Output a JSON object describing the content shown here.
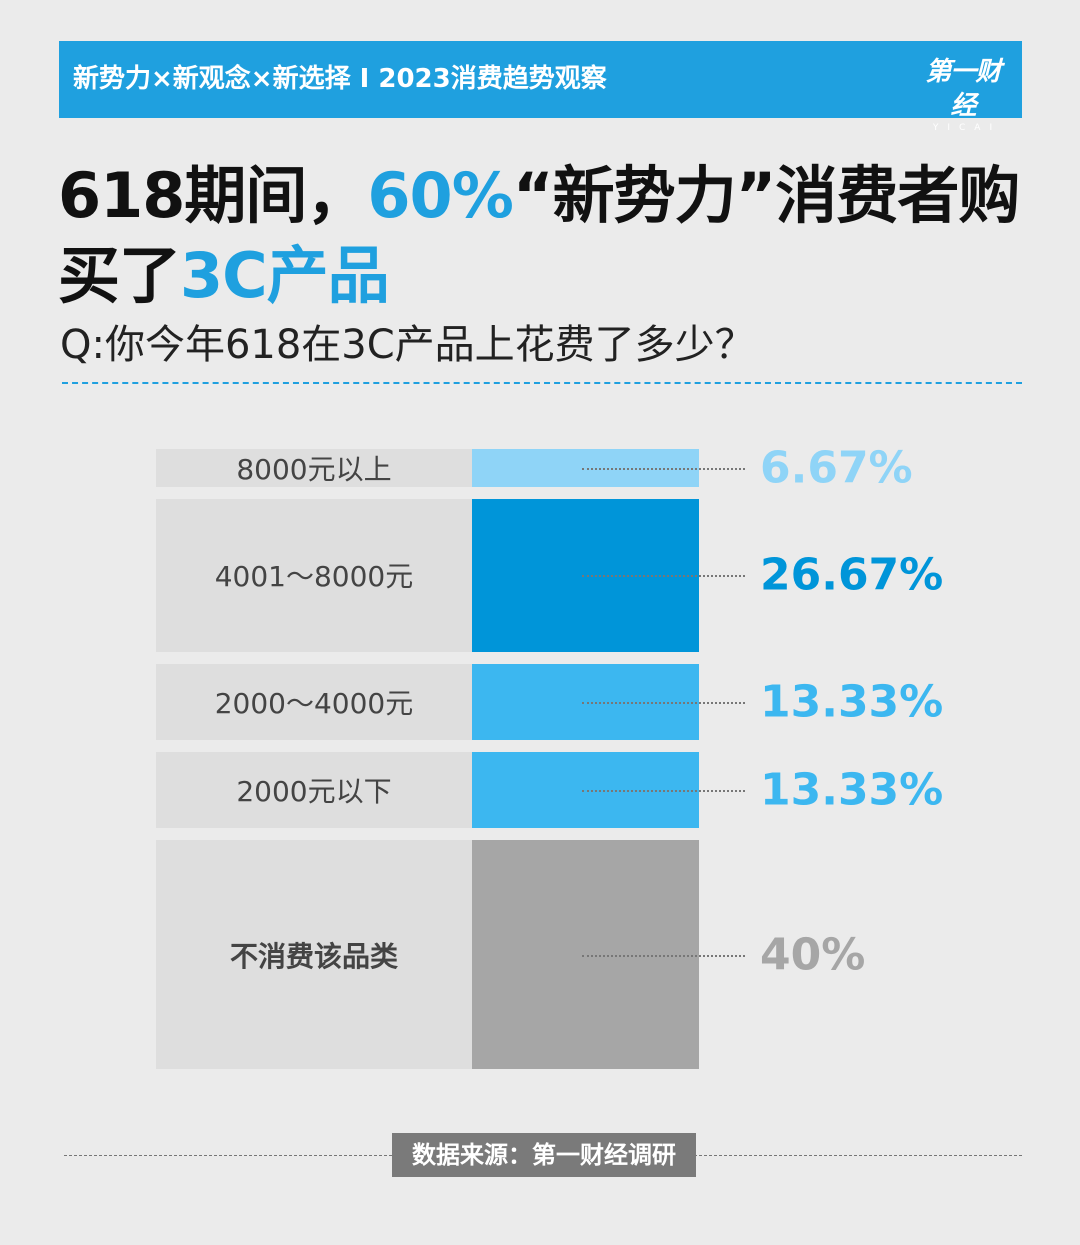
{
  "banner": {
    "text": "新势力×新观念×新选择 I 2023消费趋势观察",
    "logo_cn": "第一财经",
    "logo_en": "YICAI"
  },
  "headline": {
    "part1": "618期间，",
    "highlight1": "60%",
    "part2": "“新势力”消费者购买了",
    "highlight2": "3C产品"
  },
  "question": "Q:你今年618在3C产品上花费了多少？",
  "source": "数据来源：第一财经调研",
  "colors": {
    "accent": "#1fa0df",
    "dark_blue": "#0095d9",
    "light_blue": "#8fd4f7",
    "mid_blue": "#3cb7f0",
    "gray": "#a6a6a6",
    "bg": "#ebebeb"
  },
  "chart_data": {
    "type": "bar",
    "orientation": "horizontal-proportional",
    "categories": [
      "8000元以上",
      "4001～8000元",
      "2000～4000元",
      "2000元以下",
      "不消费该品类"
    ],
    "values": [
      6.67,
      26.67,
      13.33,
      13.33,
      40
    ],
    "value_labels": [
      "6.67%",
      "26.67%",
      "13.33%",
      "13.33%",
      "40%"
    ],
    "colors": [
      "#8fd4f7",
      "#0095d9",
      "#3cb7f0",
      "#3cb7f0",
      "#a6a6a6"
    ],
    "label_colors": [
      "#8fd4f7",
      "#0095d9",
      "#3cb7f0",
      "#3cb7f0",
      "#a6a6a6"
    ]
  }
}
